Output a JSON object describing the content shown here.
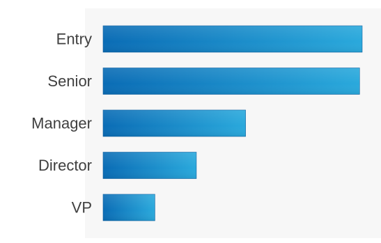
{
  "chart_data": {
    "type": "bar",
    "orientation": "horizontal",
    "categories": [
      "Entry",
      "Senior",
      "Manager",
      "Director",
      "VP"
    ],
    "values": [
      100,
      99,
      55,
      36,
      20
    ],
    "xlim": [
      0,
      100
    ],
    "grid": false,
    "legend": "none",
    "colors": {
      "bar_start": "#0a6cb5",
      "bar_end": "#2aa9dc",
      "bar_edge": "#0b5e9e",
      "panel": "#f7f7f7",
      "label": "#3f3f3f"
    }
  }
}
